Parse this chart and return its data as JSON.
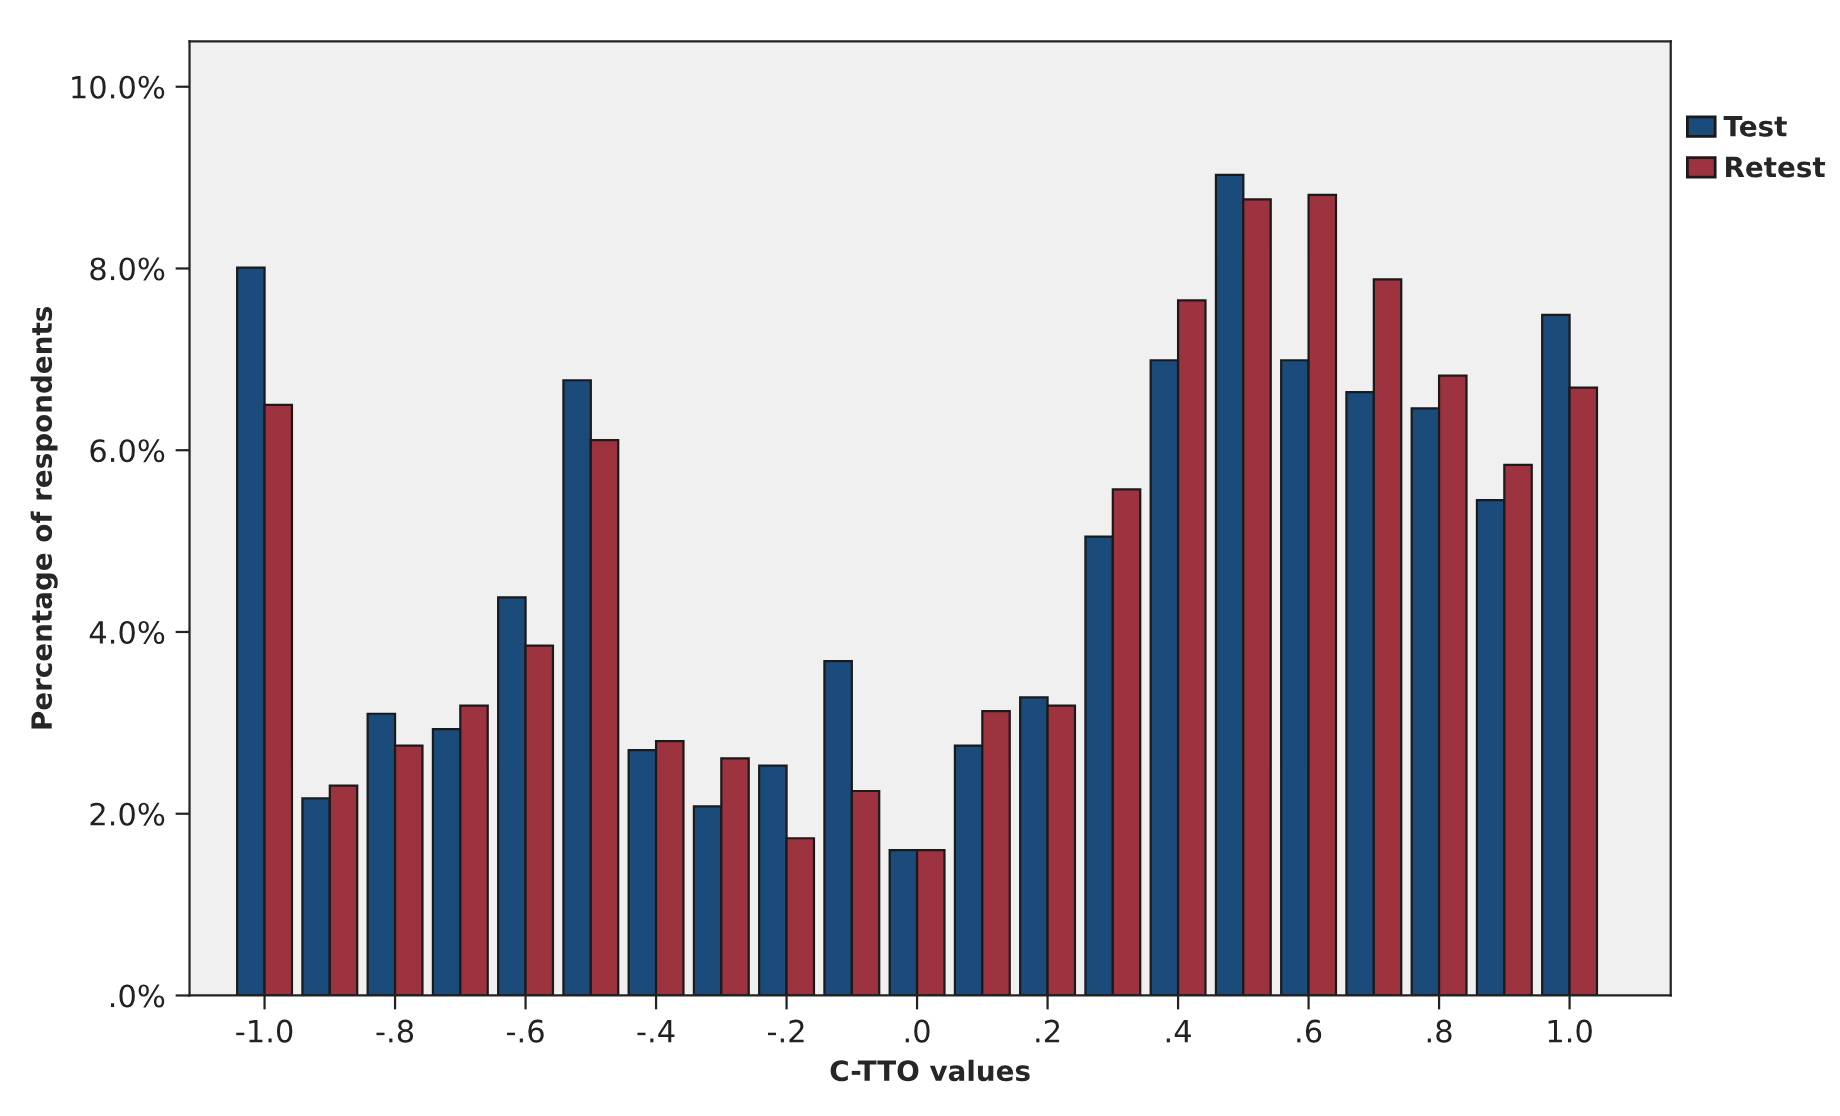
{
  "chart_data": {
    "type": "bar",
    "xlabel": "C-TTO values",
    "ylabel": "Percentage of respondents",
    "categories": [
      "-1.0",
      null,
      "-.8",
      null,
      "-.6",
      null,
      "-.4",
      null,
      "-.2",
      null,
      ".0",
      null,
      ".2",
      null,
      ".4",
      null,
      ".6",
      null,
      ".8",
      null,
      "1.0"
    ],
    "series": [
      {
        "name": "Test",
        "color": "#1b4b7a",
        "values": [
          8.01,
          2.17,
          3.1,
          2.93,
          4.38,
          6.77,
          2.7,
          2.08,
          2.53,
          3.68,
          1.6,
          2.75,
          3.28,
          5.05,
          6.99,
          9.03,
          6.99,
          6.64,
          6.46,
          5.45,
          7.49
        ]
      },
      {
        "name": "Retest",
        "color": "#9e3340",
        "values": [
          6.5,
          2.31,
          2.75,
          3.19,
          3.85,
          6.11,
          2.8,
          2.61,
          1.73,
          2.25,
          1.6,
          3.13,
          3.19,
          5.57,
          7.65,
          8.76,
          8.81,
          7.88,
          6.82,
          5.84,
          6.69
        ]
      }
    ],
    "ylim": [
      0,
      10.5
    ],
    "yticks": [
      {
        "value": 0,
        "label": ".0%"
      },
      {
        "value": 2,
        "label": "2.0%"
      },
      {
        "value": 4,
        "label": "4.0%"
      },
      {
        "value": 6,
        "label": "6.0%"
      },
      {
        "value": 8,
        "label": "8.0%"
      },
      {
        "value": 10,
        "label": "10.0%"
      }
    ],
    "grid": false,
    "legend": "right"
  }
}
